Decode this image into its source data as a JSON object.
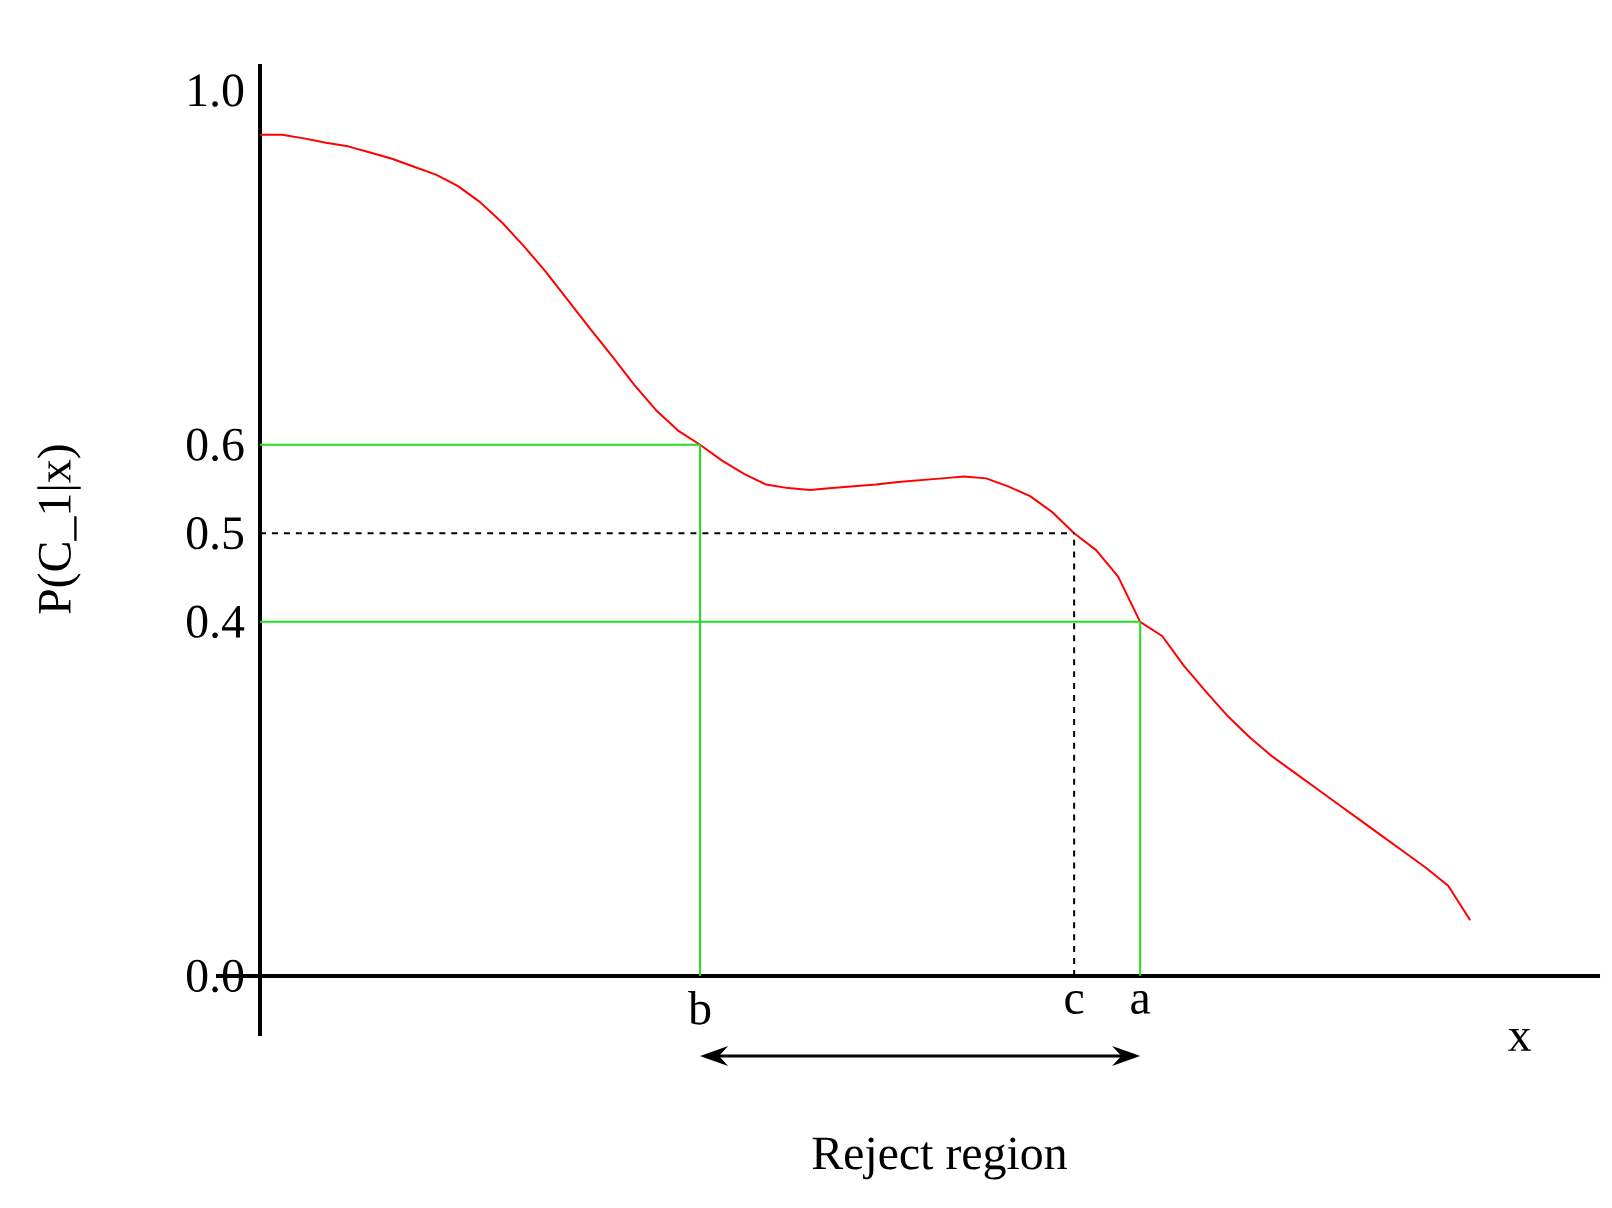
{
  "chart_data": {
    "type": "line",
    "ylabel": "P(C_1|x)",
    "xlabel": "x",
    "annotations": [
      "Reject region"
    ],
    "ylim": [
      0,
      1.03
    ],
    "categories": [
      null,
      null,
      null,
      null,
      null,
      null,
      null,
      null,
      null,
      null,
      null,
      null,
      null,
      null,
      null,
      null,
      null,
      null,
      null,
      null,
      "b",
      null,
      null,
      null,
      null,
      null,
      null,
      null,
      null,
      null,
      null,
      null,
      null,
      null,
      null,
      null,
      null,
      "c",
      null,
      null,
      "a",
      null,
      null,
      null,
      null,
      null,
      null,
      null,
      null,
      null,
      null,
      null,
      null,
      null,
      null,
      null
    ],
    "yticks": [
      {
        "value": 0,
        "label": "0.0"
      },
      {
        "value": 0.4,
        "label": "0.4"
      },
      {
        "value": 0.5,
        "label": "0.5"
      },
      {
        "value": 0.6,
        "label": "0.6"
      },
      {
        "value": 1,
        "label": "1.0"
      }
    ],
    "series": [
      {
        "color": "#ff0000",
        "values": [
          0.95,
          0.95,
          0.946,
          0.941,
          0.937,
          0.93,
          0.923,
          0.914,
          0.905,
          0.892,
          0.874,
          0.851,
          0.824,
          0.795,
          0.763,
          0.731,
          0.7,
          0.668,
          0.639,
          0.616,
          0.6,
          0.582,
          0.567,
          0.555,
          0.551,
          0.549,
          0.551,
          0.553,
          0.555,
          0.558,
          0.56,
          0.562,
          0.564,
          0.562,
          0.553,
          0.542,
          0.524,
          0.5,
          0.481,
          0.451,
          0.4,
          0.384,
          0.35,
          0.321,
          0.293,
          0.269,
          0.248,
          0.23,
          0.212,
          0.194,
          0.176,
          0.158,
          0.14,
          0.122,
          0.102,
          0.063
        ]
      }
    ],
    "ref_lines": [
      {
        "axis": "x",
        "value": "b",
        "color": "#22dd22",
        "line_style": "solid"
      },
      {
        "axis": "y",
        "value": 0.6,
        "color": "#22dd22",
        "line_style": "solid"
      },
      {
        "axis": "x",
        "value": "c",
        "color": "#000000",
        "line_style": "dashed"
      },
      {
        "axis": "y",
        "value": 0.5,
        "color": "#000000",
        "line_style": "dashed"
      },
      {
        "axis": "x",
        "value": "a",
        "color": "#22dd22",
        "line_style": "solid"
      },
      {
        "axis": "y",
        "value": 0.4,
        "color": "#22dd22",
        "line_style": "solid"
      }
    ]
  }
}
